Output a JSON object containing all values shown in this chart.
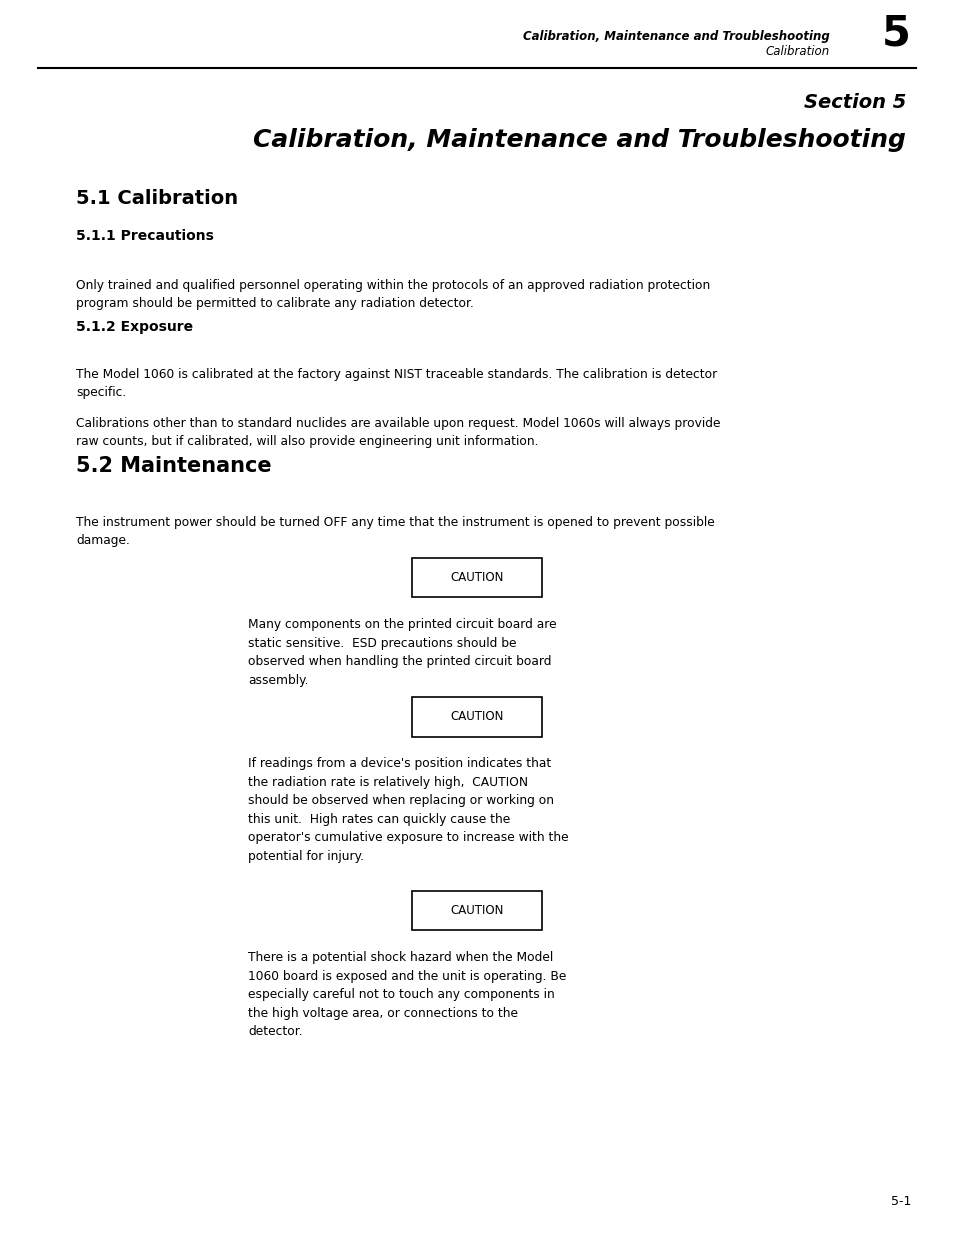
{
  "page_width": 9.54,
  "page_height": 12.35,
  "bg_color": "#ffffff",
  "header_text1": "Calibration, Maintenance and Troubleshooting",
  "header_text2": "Calibration",
  "header_num": "5",
  "section_title_line1": "Section 5",
  "section_title_line2": "Calibration, Maintenance and Troubleshooting",
  "h1_text": "5.1 Calibration",
  "h2_text": "5.1.1 Precautions",
  "para1": "Only trained and qualified personnel operating within the protocols of an approved radiation protection\nprogram should be permitted to calibrate any radiation detector.",
  "h3_text": "5.1.2 Exposure",
  "para2": "The Model 1060 is calibrated at the factory against NIST traceable standards. The calibration is detector\nspecific.",
  "para3": "Calibrations other than to standard nuclides are available upon request. Model 1060s will always provide\nraw counts, but if calibrated, will also provide engineering unit information.",
  "h4_text": "5.2 Maintenance",
  "para4": "The instrument power should be turned OFF any time that the instrument is opened to prevent possible\ndamage.",
  "caution_label": "CAUTION",
  "caution1_body": "Many components on the printed circuit board are\nstatic sensitive.  ESD precautions should be\nobserved when handling the printed circuit board\nassembly.",
  "caution2_body": "If readings from a device's position indicates that\nthe radiation rate is relatively high,  CAUTION\nshould be observed when replacing or working on\nthis unit.  High rates can quickly cause the\noperator's cumulative exposure to increase with the\npotential for injury.",
  "caution3_body": "There is a potential shock hazard when the Model\n1060 board is exposed and the unit is operating. Be\nespecially careful not to touch any components in\nthe high voltage area, or connections to the\ndetector.",
  "footer_text": "5-1"
}
